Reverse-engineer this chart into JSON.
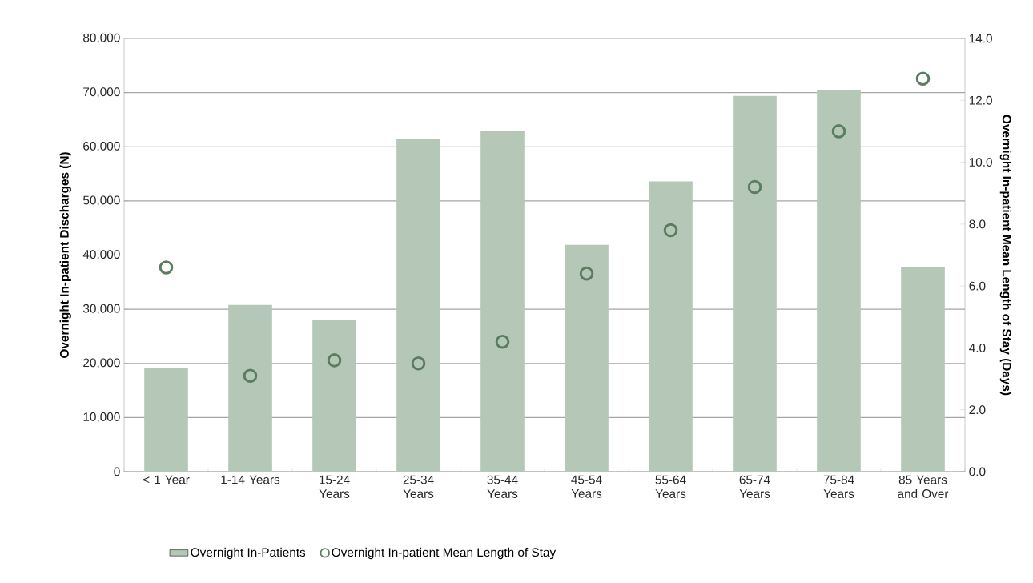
{
  "chart_data": {
    "type": "bar",
    "categories": [
      "< 1 Year",
      "1-14 Years",
      "15-24 Years",
      "25-34 Years",
      "35-44 Years",
      "45-54 Years",
      "55-64 Years",
      "65-74 Years",
      "75-84 Years",
      "85 Years and Over"
    ],
    "series": [
      {
        "name": "Overnight In-Patients",
        "color": "#b5c8b8",
        "values": [
          19200,
          30800,
          28100,
          61500,
          63000,
          41900,
          53600,
          69400,
          70500,
          37700
        ]
      },
      {
        "name": "Overnight In-patient Mean Length of Stay",
        "type": "scatter",
        "axis": "y2",
        "color": "#5a7d60",
        "values": [
          6.6,
          3.1,
          3.6,
          3.5,
          4.2,
          6.4,
          7.8,
          9.2,
          11.0,
          12.7
        ]
      }
    ],
    "ylabel": "Overnight In-patient Discharges (N)",
    "y2label": "Overnight In-patient Mean Length of Stay (Days)",
    "ylim": [
      0,
      80000
    ],
    "yticks": [
      0,
      {
        "value": 10000,
        "label": "10,000"
      },
      {
        "value": 20000,
        "label": "20,000"
      },
      {
        "value": 30000,
        "label": "30,000"
      },
      {
        "value": 40000,
        "label": "40,000"
      },
      {
        "value": 50000,
        "label": "50,000"
      },
      {
        "value": 60000,
        "label": "60,000"
      },
      {
        "value": 70000,
        "label": "70,000"
      },
      {
        "value": 80000,
        "label": "80,000"
      }
    ],
    "y2lim": [
      0,
      14
    ],
    "y2ticks": [
      {
        "value": 0,
        "label": "0.0"
      },
      {
        "value": 2,
        "label": "2.0"
      },
      {
        "value": 4,
        "label": "4.0"
      },
      {
        "value": 6,
        "label": "6.0"
      },
      {
        "value": 8,
        "label": "8.0"
      },
      {
        "value": 10,
        "label": "10.0"
      },
      {
        "value": 12,
        "label": "12.0"
      },
      {
        "value": 14,
        "label": "14.0"
      }
    ],
    "grid": "y",
    "legend": "bottom",
    "marker": "circle"
  }
}
